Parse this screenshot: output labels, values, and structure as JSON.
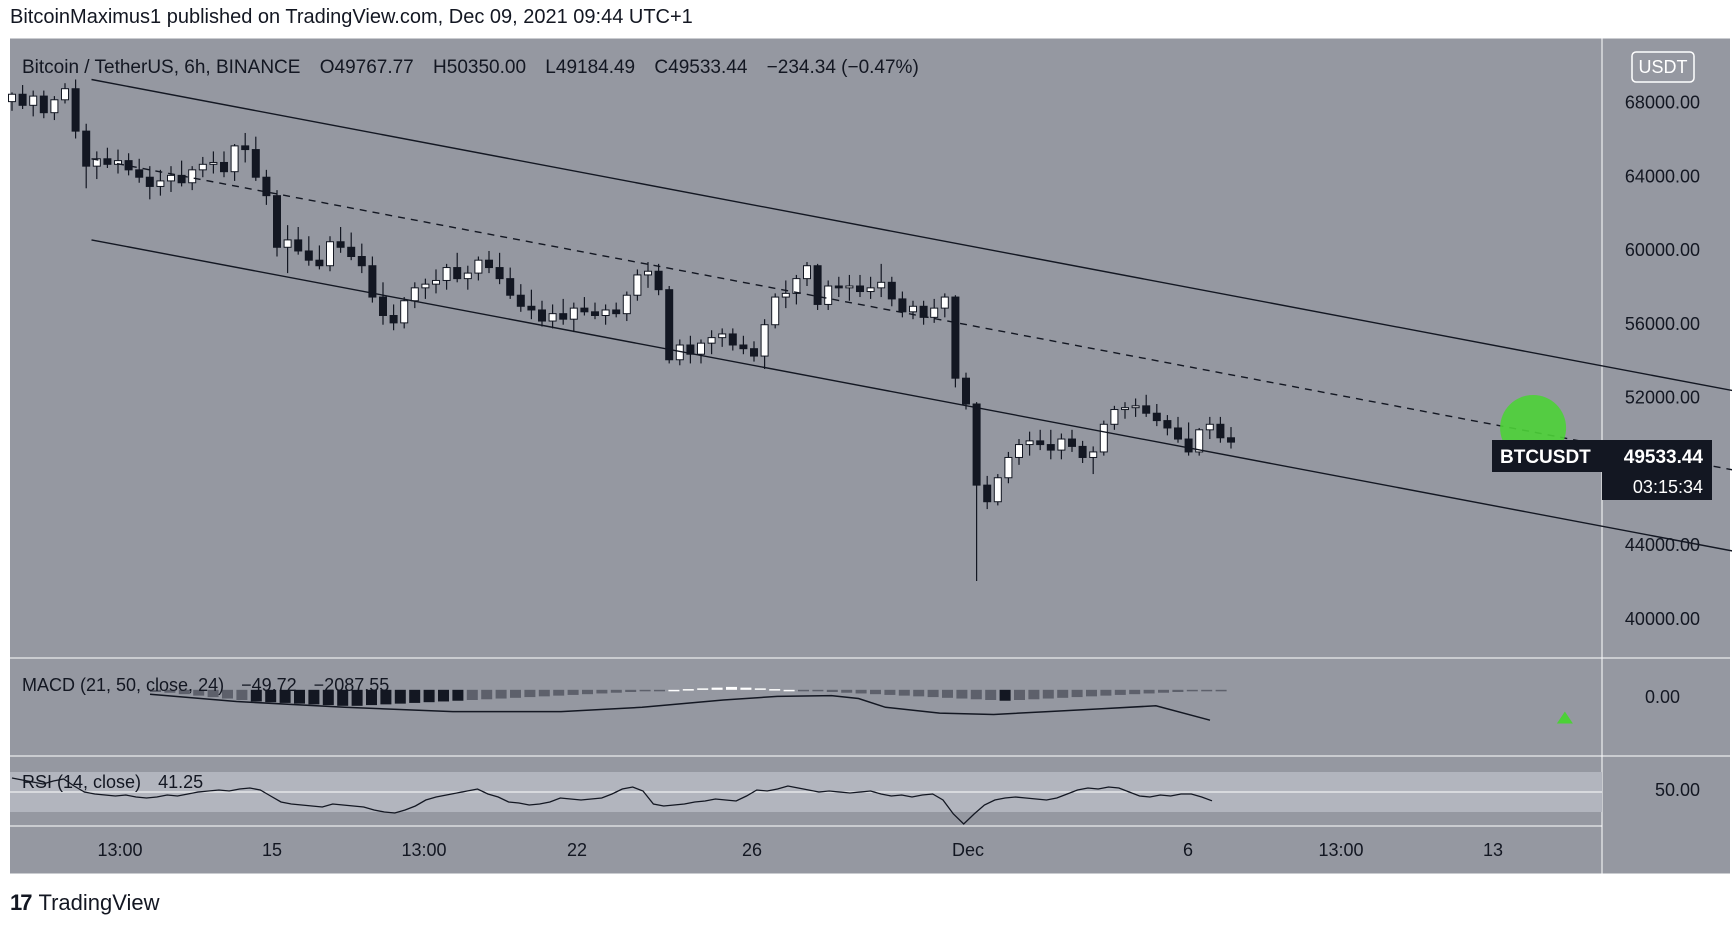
{
  "header": {
    "publisher_line": "BitcoinMaximus1 published on TradingView.com, Dec 09, 2021 09:44 UTC+1"
  },
  "symbol_bar": {
    "pair": "Bitcoin / TetherUS, 6h, BINANCE",
    "open_label": "O",
    "open": "49767.77",
    "high_label": "H",
    "high": "50350.00",
    "low_label": "L",
    "low": "49184.49",
    "close_label": "C",
    "close": "49533.44",
    "change": "−234.34 (−0.47%)"
  },
  "currency_badge": "USDT",
  "price_tag": {
    "ticker": "BTCUSDT",
    "price": "49533.44",
    "countdown": "03:15:34"
  },
  "macd": {
    "label": "MACD (21, 50, close, 24)",
    "value1": "−49.72",
    "value2": "−2087.55",
    "axis_label": "0.00"
  },
  "rsi": {
    "label": "RSI (14, close)",
    "value": "41.25",
    "axis_label": "50.00"
  },
  "footer": {
    "logo": "17",
    "brand": "TradingView"
  },
  "colors": {
    "pane_bg": "#9598a1",
    "rsi_band": "#b2b5be",
    "highlight": "#4cd137",
    "candle_up": "#ffffff",
    "candle_down": "#131722",
    "text": "#131722"
  },
  "chart_data": {
    "type": "candlestick",
    "symbol": "Bitcoin / TetherUS",
    "interval": "6h",
    "exchange": "BINANCE",
    "y_ticks": [
      68000,
      64000,
      60000,
      56000,
      52000,
      44000,
      40000
    ],
    "y_tick_labels": [
      "68000.00",
      "64000.00",
      "60000.00",
      "56000.00",
      "52000.00",
      "44000.00",
      "40000.00"
    ],
    "ylim": [
      38800,
      70800
    ],
    "x_tick_labels": [
      "13:00",
      "15",
      "13:00",
      "22",
      "26",
      "Dec",
      "6",
      "13:00",
      "13"
    ],
    "candles": [
      [
        68000,
        68500,
        67500,
        68400
      ],
      [
        68400,
        68900,
        67600,
        67800
      ],
      [
        67800,
        68600,
        67200,
        68300
      ],
      [
        68300,
        68600,
        67100,
        67400
      ],
      [
        67400,
        68300,
        67000,
        68100
      ],
      [
        68100,
        69000,
        67900,
        68700
      ],
      [
        68700,
        69200,
        66000,
        66400
      ],
      [
        66400,
        66800,
        63300,
        64500
      ],
      [
        64500,
        65300,
        63800,
        64900
      ],
      [
        64900,
        65500,
        64400,
        64600
      ],
      [
        64600,
        65400,
        64100,
        64800
      ],
      [
        64800,
        65200,
        64000,
        64300
      ],
      [
        64300,
        64900,
        63600,
        63900
      ],
      [
        63900,
        64500,
        62700,
        63400
      ],
      [
        63400,
        64300,
        62900,
        63700
      ],
      [
        63700,
        64500,
        63100,
        64000
      ],
      [
        64000,
        64800,
        63400,
        63600
      ],
      [
        63600,
        64500,
        63200,
        64300
      ],
      [
        64300,
        65000,
        63900,
        64600
      ],
      [
        64600,
        65300,
        64100,
        64700
      ],
      [
        64700,
        65300,
        63900,
        64200
      ],
      [
        64200,
        65700,
        63700,
        65600
      ],
      [
        65600,
        66300,
        64700,
        65400
      ],
      [
        65400,
        66100,
        63700,
        63900
      ],
      [
        63900,
        64300,
        62400,
        62900
      ],
      [
        62900,
        63200,
        59600,
        60100
      ],
      [
        60100,
        61300,
        58700,
        60500
      ],
      [
        60500,
        61200,
        59700,
        59900
      ],
      [
        59900,
        60700,
        59100,
        59400
      ],
      [
        59400,
        60200,
        58900,
        59100
      ],
      [
        59100,
        60700,
        58800,
        60400
      ],
      [
        60400,
        61200,
        59800,
        60100
      ],
      [
        60100,
        60900,
        59400,
        59600
      ],
      [
        59600,
        60300,
        58700,
        59100
      ],
      [
        59100,
        59600,
        57100,
        57400
      ],
      [
        57400,
        58200,
        55900,
        56400
      ],
      [
        56400,
        57000,
        55600,
        56000
      ],
      [
        56000,
        57400,
        55700,
        57200
      ],
      [
        57200,
        58200,
        56800,
        57900
      ],
      [
        57900,
        58400,
        57300,
        58100
      ],
      [
        58100,
        58900,
        57600,
        58300
      ],
      [
        58300,
        59200,
        57800,
        59000
      ],
      [
        59000,
        59800,
        58200,
        58400
      ],
      [
        58400,
        59100,
        57800,
        58700
      ],
      [
        58700,
        59600,
        58300,
        59400
      ],
      [
        59400,
        59900,
        58700,
        59000
      ],
      [
        59000,
        59800,
        58100,
        58400
      ],
      [
        58400,
        59000,
        57300,
        57500
      ],
      [
        57500,
        58100,
        56600,
        56900
      ],
      [
        56900,
        57800,
        56200,
        56700
      ],
      [
        56700,
        57200,
        55800,
        56100
      ],
      [
        56100,
        57000,
        55700,
        56500
      ],
      [
        56500,
        57300,
        55900,
        56200
      ],
      [
        56200,
        57100,
        55500,
        56800
      ],
      [
        56800,
        57400,
        56400,
        56600
      ],
      [
        56600,
        57100,
        56200,
        56400
      ],
      [
        56400,
        57000,
        55900,
        56700
      ],
      [
        56700,
        57100,
        56300,
        56500
      ],
      [
        56500,
        57700,
        56100,
        57500
      ],
      [
        57500,
        58900,
        57200,
        58600
      ],
      [
        58600,
        59300,
        57900,
        58800
      ],
      [
        58800,
        59200,
        57500,
        57800
      ],
      [
        57800,
        58000,
        53800,
        54000
      ],
      [
        54000,
        55100,
        53700,
        54800
      ],
      [
        54800,
        55300,
        53800,
        54300
      ],
      [
        54300,
        55100,
        53800,
        54900
      ],
      [
        54900,
        55600,
        54300,
        55200
      ],
      [
        55200,
        55700,
        54700,
        55400
      ],
      [
        55400,
        55700,
        54500,
        54800
      ],
      [
        54800,
        55300,
        54300,
        54600
      ],
      [
        54600,
        55000,
        53900,
        54200
      ],
      [
        54200,
        56200,
        53500,
        55900
      ],
      [
        55900,
        57600,
        55700,
        57400
      ],
      [
        57400,
        58300,
        56800,
        57600
      ],
      [
        57600,
        58600,
        57000,
        58400
      ],
      [
        58400,
        59300,
        58000,
        59100
      ],
      [
        59100,
        59200,
        56700,
        57000
      ],
      [
        57000,
        58300,
        56700,
        58000
      ],
      [
        58000,
        58500,
        57400,
        57900
      ],
      [
        57900,
        58600,
        57200,
        58000
      ],
      [
        58000,
        58600,
        57400,
        57700
      ],
      [
        57700,
        58500,
        57300,
        57900
      ],
      [
        57900,
        59200,
        57400,
        58200
      ],
      [
        58200,
        58500,
        56900,
        57300
      ],
      [
        57300,
        57700,
        56300,
        56600
      ],
      [
        56600,
        57200,
        56200,
        56900
      ],
      [
        56900,
        57200,
        55900,
        56300
      ],
      [
        56300,
        57300,
        56000,
        56800
      ],
      [
        56800,
        57600,
        56300,
        57400
      ],
      [
        57400,
        57500,
        52500,
        53000
      ],
      [
        53000,
        53300,
        51300,
        51600
      ],
      [
        51600,
        51700,
        42000,
        47200
      ],
      [
        47200,
        47700,
        45900,
        46300
      ],
      [
        46300,
        47800,
        46100,
        47600
      ],
      [
        47600,
        49000,
        47300,
        48700
      ],
      [
        48700,
        49700,
        48300,
        49400
      ],
      [
        49400,
        50100,
        48800,
        49600
      ],
      [
        49600,
        50200,
        49100,
        49400
      ],
      [
        49400,
        50200,
        48600,
        49100
      ],
      [
        49100,
        50000,
        48600,
        49700
      ],
      [
        49700,
        50200,
        49000,
        49300
      ],
      [
        49300,
        49600,
        48400,
        48700
      ],
      [
        48700,
        49300,
        47800,
        49000
      ],
      [
        49000,
        50700,
        48800,
        50500
      ],
      [
        50500,
        51500,
        50200,
        51300
      ],
      [
        51300,
        51700,
        50800,
        51400
      ],
      [
        51400,
        51900,
        50900,
        51500
      ],
      [
        51500,
        52100,
        50900,
        51100
      ],
      [
        51100,
        51600,
        50400,
        50700
      ],
      [
        50700,
        51000,
        49900,
        50300
      ],
      [
        50300,
        50900,
        49500,
        49700
      ],
      [
        49700,
        50600,
        48800,
        49000
      ],
      [
        49000,
        50300,
        48800,
        50200
      ],
      [
        50200,
        50900,
        49700,
        50500
      ],
      [
        50500,
        50900,
        49500,
        49767.77
      ],
      [
        49767.77,
        50350,
        49184.49,
        49533.44
      ]
    ],
    "channel": {
      "upper": {
        "from": {
          "candle": 7.5,
          "price": 69200
        },
        "to": {
          "candle": 169,
          "price": 51600
        }
      },
      "middle": {
        "from": {
          "candle": 7.5,
          "price": 64900
        },
        "to": {
          "candle": 169,
          "price": 47300
        }
      },
      "lower": {
        "from": {
          "candle": 7.5,
          "price": 60500
        },
        "to": {
          "candle": 169,
          "price": 42900
        }
      }
    },
    "highlight": {
      "candle": 143.5,
      "price": 50300
    },
    "macd": {
      "ylim": [
        -4000,
        1500
      ],
      "signal_arrow": {
        "candle": 146.5,
        "value": -1900
      },
      "line": [
        [
          4,
          -300
        ],
        [
          20,
          -800
        ],
        [
          40,
          -1200
        ],
        [
          60,
          -1500
        ],
        [
          80,
          -1500
        ],
        [
          95,
          -1200
        ],
        [
          110,
          -700
        ],
        [
          120,
          -450
        ],
        [
          130,
          -400
        ],
        [
          135,
          -600
        ],
        [
          140,
          -1200
        ],
        [
          150,
          -1600
        ],
        [
          160,
          -1700
        ],
        [
          170,
          -1500
        ],
        [
          180,
          -1300
        ],
        [
          190,
          -1100
        ],
        [
          200,
          -2087.55
        ]
      ],
      "histogram": [
        -150,
        -200,
        -300,
        -400,
        -500,
        -600,
        -700,
        -800,
        -850,
        -900,
        -950,
        -1000,
        -1050,
        -1100,
        -1100,
        -1050,
        -1000,
        -950,
        -900,
        -850,
        -800,
        -750,
        -700,
        -650,
        -600,
        -550,
        -500,
        -450,
        -400,
        -350,
        -300,
        -250,
        -200,
        -150,
        -100,
        -50,
        0,
        50,
        100,
        150,
        200,
        150,
        100,
        50,
        0,
        -50,
        -100,
        -150,
        -200,
        -250,
        -300,
        -350,
        -400,
        -450,
        -500,
        -550,
        -600,
        -650,
        -700,
        -750,
        -700,
        -650,
        -600,
        -550,
        -500,
        -450,
        -400,
        -350,
        -300,
        -250,
        -200,
        -150,
        -100,
        -50,
        -49.72
      ]
    },
    "rsi": {
      "ylim": [
        20,
        80
      ],
      "band": [
        30,
        70
      ],
      "midline": 50,
      "values": [
        64,
        62,
        60,
        58,
        61,
        63,
        56,
        50,
        48,
        47,
        46,
        47,
        45,
        44,
        45,
        47,
        46,
        48,
        50,
        51,
        52,
        51,
        53,
        54,
        52,
        46,
        40,
        38,
        37,
        36,
        35,
        38,
        37,
        36,
        35,
        32,
        30,
        29,
        32,
        36,
        42,
        45,
        47,
        49,
        51,
        53,
        48,
        45,
        40,
        39,
        37,
        38,
        40,
        44,
        43,
        42,
        43,
        44,
        48,
        53,
        55,
        51,
        38,
        36,
        37,
        38,
        40,
        41,
        43,
        42,
        41,
        46,
        52,
        51,
        53,
        56,
        54,
        52,
        50,
        51,
        50,
        49,
        50,
        51,
        48,
        46,
        47,
        45,
        47,
        48,
        42,
        28,
        18,
        28,
        37,
        42,
        44,
        45,
        44,
        43,
        42,
        44,
        48,
        52,
        54,
        53,
        55,
        54,
        50,
        46,
        45,
        47,
        46,
        48,
        48,
        45,
        41.25
      ]
    }
  }
}
